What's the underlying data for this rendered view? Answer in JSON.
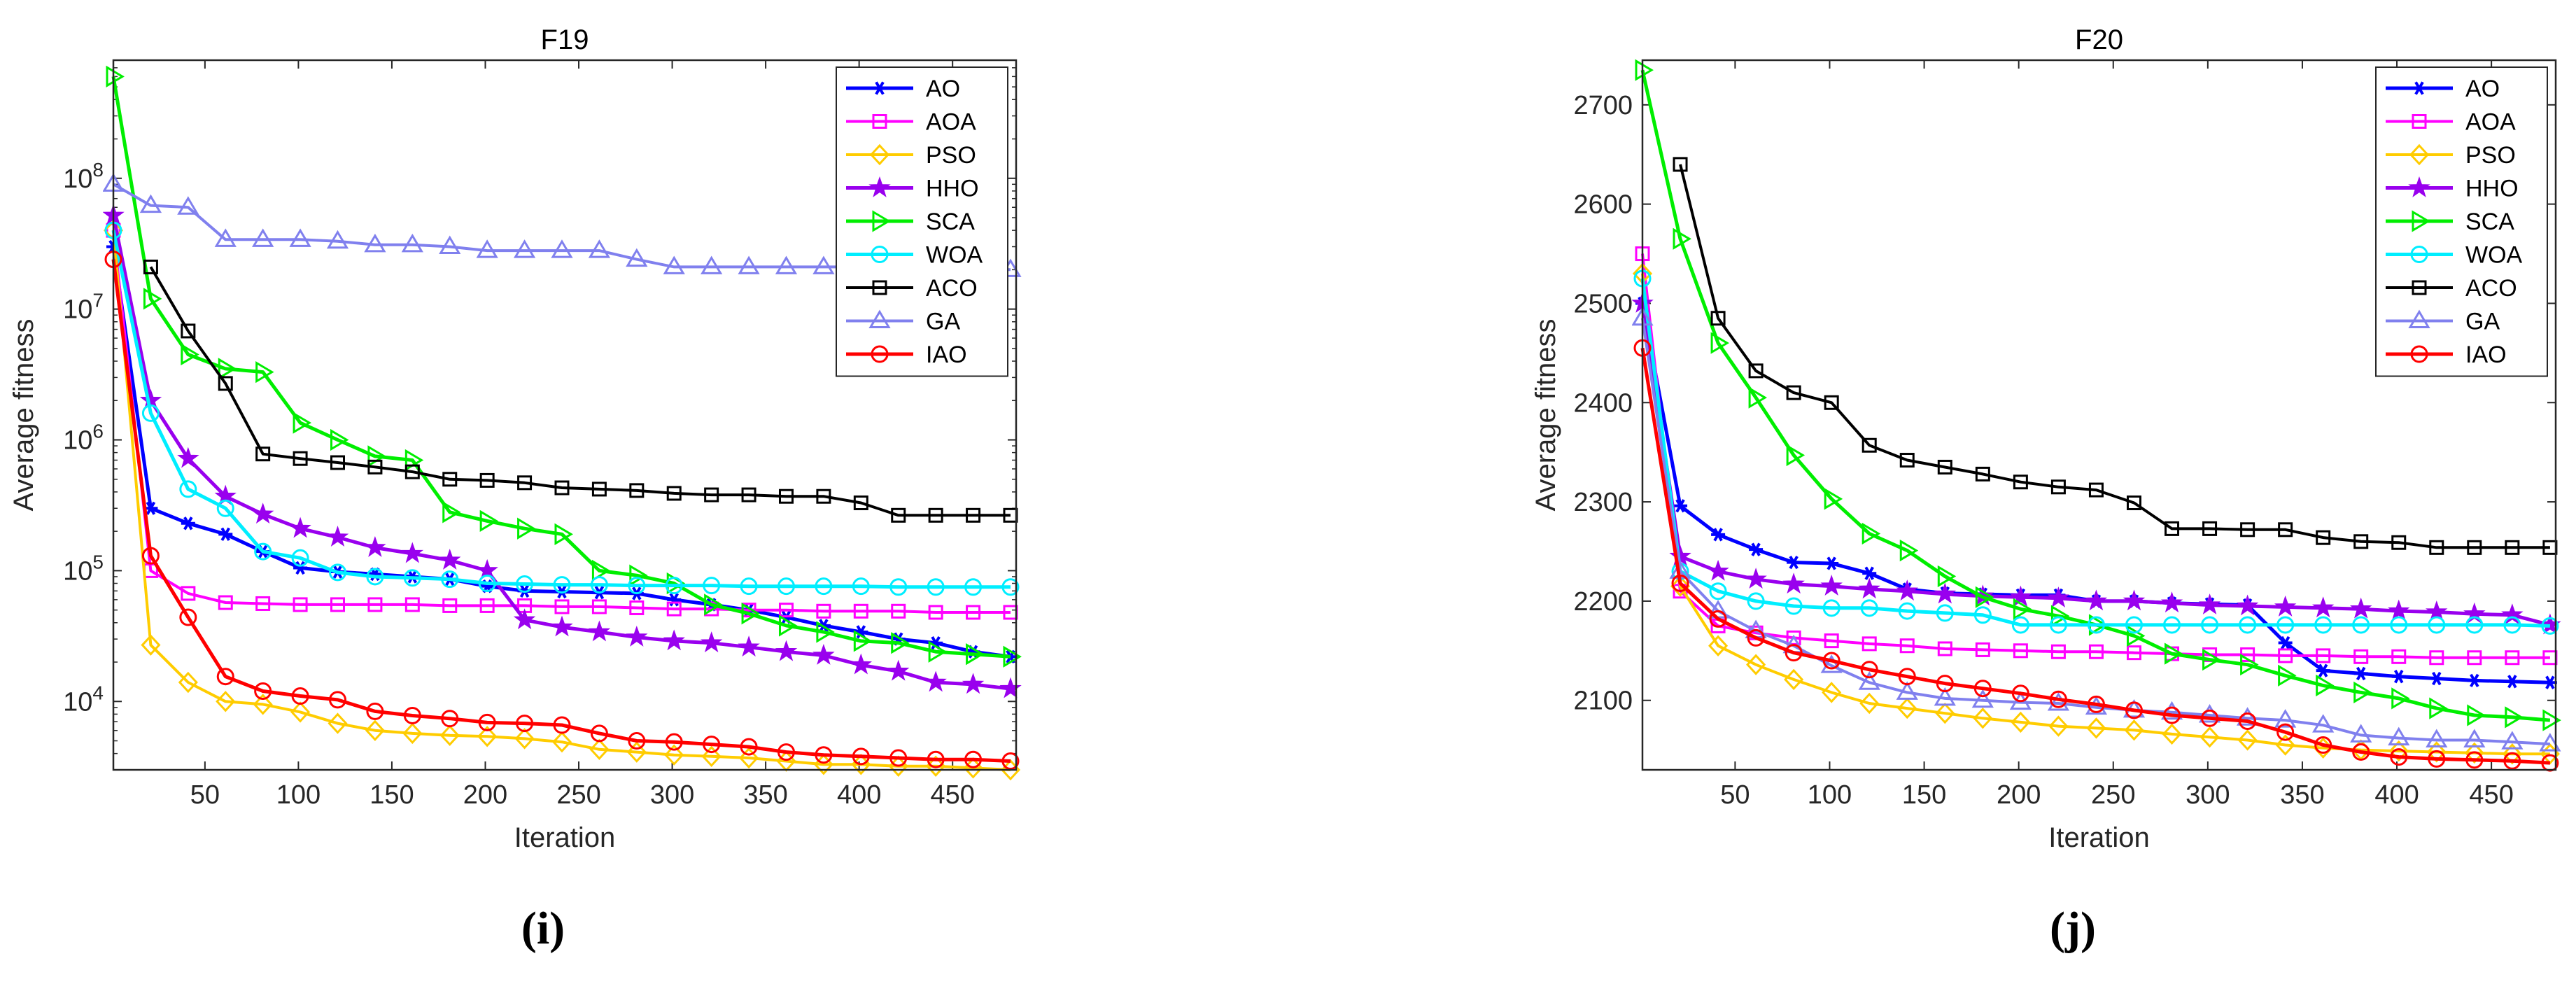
{
  "colors": {
    "AO": "#0000ff",
    "AOA": "#ff00ff",
    "PSO": "#ffcc00",
    "HHO": "#9900ee",
    "SCA": "#00ee00",
    "WOA": "#00eeff",
    "ACO": "#000000",
    "GA": "#8080ee",
    "IAO": "#ff0000"
  },
  "chart_data": [
    {
      "type": "line",
      "title": "F19",
      "subfigure_label": "(i)",
      "xlabel": "Iteration",
      "ylabel": "Average fitness",
      "yscale": "log",
      "xlim": [
        1,
        484
      ],
      "ylim": [
        3000,
        800000000
      ],
      "xticks": [
        50,
        100,
        150,
        200,
        250,
        300,
        350,
        400,
        450
      ],
      "xtick_labels": [
        "50",
        "100",
        "150",
        "200",
        "250",
        "300",
        "350",
        "400",
        "450"
      ],
      "yticks": [
        10000,
        100000,
        1000000,
        10000000,
        100000000
      ],
      "ytick_labels": [
        "10^4",
        "10^5",
        "10^6",
        "10^7",
        "10^8"
      ],
      "legend_position": "top-right",
      "x": [
        1,
        21,
        41,
        61,
        81,
        101,
        121,
        141,
        161,
        181,
        201,
        221,
        241,
        261,
        281,
        301,
        321,
        341,
        361,
        381,
        401,
        421,
        441,
        461,
        481
      ],
      "series": [
        {
          "name": "AO",
          "values": [
            30000000,
            300000,
            230000,
            190000,
            140000,
            105000,
            98000,
            94000,
            90000,
            86000,
            76000,
            70000,
            69000,
            68000,
            67000,
            60000,
            55000,
            50000,
            44000,
            38000,
            34000,
            30000,
            28000,
            24000,
            22000
          ]
        },
        {
          "name": "AOA",
          "values": [
            40000000,
            100000,
            67000,
            57000,
            56000,
            55000,
            55000,
            55000,
            55000,
            54000,
            54000,
            54000,
            53000,
            53000,
            52000,
            51000,
            51000,
            50000,
            50000,
            49000,
            49000,
            49000,
            48000,
            48000,
            48000
          ]
        },
        {
          "name": "PSO",
          "values": [
            40000000,
            27000,
            14000,
            10000,
            9500,
            8300,
            6800,
            6000,
            5700,
            5500,
            5400,
            5200,
            4900,
            4300,
            4100,
            3900,
            3800,
            3700,
            3500,
            3300,
            3300,
            3200,
            3200,
            3100,
            3000
          ]
        },
        {
          "name": "HHO",
          "values": [
            52000000,
            2000000,
            720000,
            370000,
            270000,
            210000,
            180000,
            150000,
            135000,
            120000,
            100000,
            42000,
            37000,
            34000,
            31000,
            29000,
            28000,
            26000,
            24000,
            22500,
            19000,
            17000,
            14000,
            13500,
            12500
          ]
        },
        {
          "name": "SCA",
          "values": [
            600000000,
            12000000,
            4500000,
            3500000,
            3300000,
            1350000,
            1000000,
            750000,
            700000,
            280000,
            240000,
            210000,
            190000,
            100000,
            92000,
            80000,
            55000,
            47000,
            38000,
            34000,
            29000,
            28000,
            24000,
            23000,
            22000
          ]
        },
        {
          "name": "WOA",
          "values": [
            40000000,
            1600000,
            420000,
            300000,
            140000,
            125000,
            97000,
            90000,
            88000,
            86000,
            80000,
            79000,
            78000,
            78000,
            77000,
            77000,
            77000,
            76000,
            76000,
            76000,
            76000,
            75000,
            75000,
            75000,
            75000
          ]
        },
        {
          "name": "ACO",
          "values": [
            null,
            21000000,
            6800000,
            2700000,
            780000,
            720000,
            670000,
            620000,
            570000,
            500000,
            490000,
            470000,
            430000,
            420000,
            410000,
            390000,
            380000,
            380000,
            370000,
            370000,
            330000,
            265000,
            265000,
            265000,
            265000
          ]
        },
        {
          "name": "GA",
          "values": [
            90000000,
            62000000,
            60000000,
            34000000,
            34000000,
            34000000,
            33000000,
            31000000,
            31000000,
            30000000,
            28000000,
            28000000,
            28000000,
            28000000,
            24000000,
            21000000,
            21000000,
            21000000,
            21000000,
            21000000,
            21000000,
            21000000,
            21000000,
            21000000,
            20000000
          ]
        },
        {
          "name": "IAO",
          "values": [
            24000000,
            130000,
            44000,
            15500,
            12000,
            11000,
            10300,
            8400,
            7800,
            7400,
            6900,
            6800,
            6600,
            5700,
            5000,
            4900,
            4700,
            4500,
            4100,
            3900,
            3800,
            3700,
            3600,
            3600,
            3500
          ]
        }
      ]
    },
    {
      "type": "line",
      "title": "F20",
      "subfigure_label": "(j)",
      "xlabel": "Iteration",
      "ylabel": "Average fitness",
      "yscale": "linear",
      "xlim": [
        1,
        484
      ],
      "ylim": [
        2030,
        2745
      ],
      "xticks": [
        50,
        100,
        150,
        200,
        250,
        300,
        350,
        400,
        450
      ],
      "xtick_labels": [
        "50",
        "100",
        "150",
        "200",
        "250",
        "300",
        "350",
        "400",
        "450"
      ],
      "yticks": [
        2100,
        2200,
        2300,
        2400,
        2500,
        2600,
        2700
      ],
      "ytick_labels": [
        "2100",
        "2200",
        "2300",
        "2400",
        "2500",
        "2600",
        "2700"
      ],
      "legend_position": "top-right",
      "x": [
        1,
        21,
        41,
        61,
        81,
        101,
        121,
        141,
        161,
        181,
        201,
        221,
        241,
        261,
        281,
        301,
        321,
        341,
        361,
        381,
        401,
        421,
        441,
        461,
        481
      ],
      "series": [
        {
          "name": "AO",
          "values": [
            2500,
            2296,
            2267,
            2252,
            2239,
            2238,
            2228,
            2212,
            2208,
            2207,
            2206,
            2206,
            2200,
            2200,
            2198,
            2197,
            2196,
            2158,
            2130,
            2127,
            2124,
            2122,
            2120,
            2119,
            2118
          ]
        },
        {
          "name": "AOA",
          "values": [
            2550,
            2210,
            2175,
            2168,
            2163,
            2160,
            2157,
            2155,
            2152,
            2151,
            2150,
            2149,
            2149,
            2148,
            2147,
            2146,
            2146,
            2145,
            2145,
            2144,
            2144,
            2143,
            2143,
            2143,
            2143
          ]
        },
        {
          "name": "PSO",
          "values": [
            2530,
            2215,
            2155,
            2136,
            2121,
            2108,
            2097,
            2092,
            2087,
            2082,
            2078,
            2074,
            2072,
            2070,
            2066,
            2063,
            2060,
            2055,
            2052,
            2050,
            2049,
            2048,
            2047,
            2046,
            2046
          ]
        },
        {
          "name": "HHO",
          "values": [
            2500,
            2245,
            2230,
            2222,
            2217,
            2215,
            2212,
            2210,
            2207,
            2205,
            2204,
            2203,
            2200,
            2200,
            2198,
            2196,
            2195,
            2194,
            2193,
            2192,
            2190,
            2189,
            2187,
            2186,
            2176
          ]
        },
        {
          "name": "SCA",
          "values": [
            2735,
            2565,
            2460,
            2405,
            2347,
            2303,
            2268,
            2251,
            2225,
            2204,
            2192,
            2185,
            2176,
            2165,
            2147,
            2141,
            2136,
            2125,
            2115,
            2108,
            2102,
            2092,
            2085,
            2083,
            2080
          ]
        },
        {
          "name": "WOA",
          "values": [
            2525,
            2230,
            2210,
            2200,
            2195,
            2193,
            2193,
            2190,
            2188,
            2186,
            2176,
            2176,
            2176,
            2176,
            2176,
            2176,
            2176,
            2176,
            2176,
            2176,
            2176,
            2176,
            2176,
            2176,
            2175
          ]
        },
        {
          "name": "ACO",
          "values": [
            null,
            2640,
            2485,
            2432,
            2410,
            2400,
            2357,
            2342,
            2335,
            2328,
            2320,
            2315,
            2312,
            2299,
            2273,
            2273,
            2272,
            2272,
            2264,
            2260,
            2259,
            2254,
            2254,
            2254,
            2254
          ]
        },
        {
          "name": "GA",
          "values": [
            2485,
            2230,
            2190,
            2170,
            2155,
            2135,
            2118,
            2108,
            2102,
            2100,
            2098,
            2097,
            2093,
            2090,
            2088,
            2085,
            2082,
            2080,
            2075,
            2065,
            2062,
            2060,
            2060,
            2058,
            2056
          ]
        },
        {
          "name": "IAO",
          "values": [
            2455,
            2218,
            2182,
            2163,
            2148,
            2140,
            2131,
            2124,
            2117,
            2112,
            2107,
            2101,
            2096,
            2090,
            2085,
            2082,
            2079,
            2068,
            2055,
            2048,
            2043,
            2041,
            2040,
            2039,
            2037
          ]
        }
      ]
    }
  ]
}
